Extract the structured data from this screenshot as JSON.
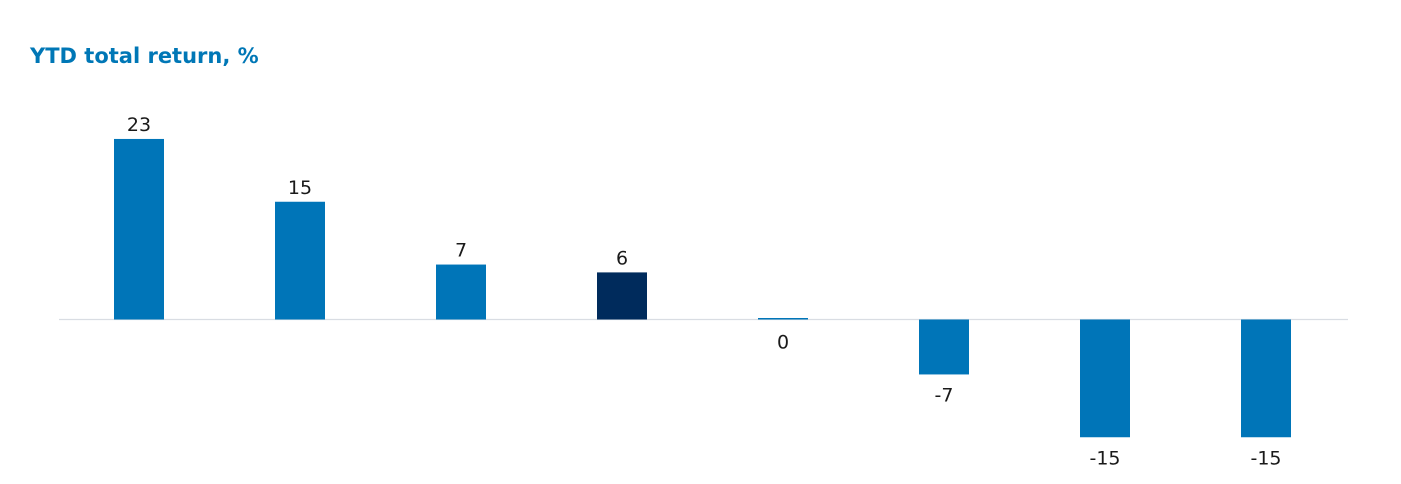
{
  "chart_data": {
    "type": "bar",
    "title": "YTD total return, %",
    "categories": [
      "",
      "",
      "",
      "",
      "",
      "",
      "",
      ""
    ],
    "values": [
      23,
      15,
      7,
      6,
      0,
      -7,
      -15,
      -15
    ],
    "data_labels": [
      "23",
      "15",
      "7",
      "6",
      "0",
      "-7",
      "-15",
      "-15"
    ],
    "highlight_index": 3,
    "colors": {
      "bar": "#0075b8",
      "highlight": "#002b5c",
      "title": "#0077b6",
      "baseline": "#d9dde3",
      "label": "#1a1a1a"
    },
    "ylim": [
      -16,
      24
    ],
    "xlabel": "",
    "ylabel": "",
    "grid": false,
    "legend": "none"
  }
}
